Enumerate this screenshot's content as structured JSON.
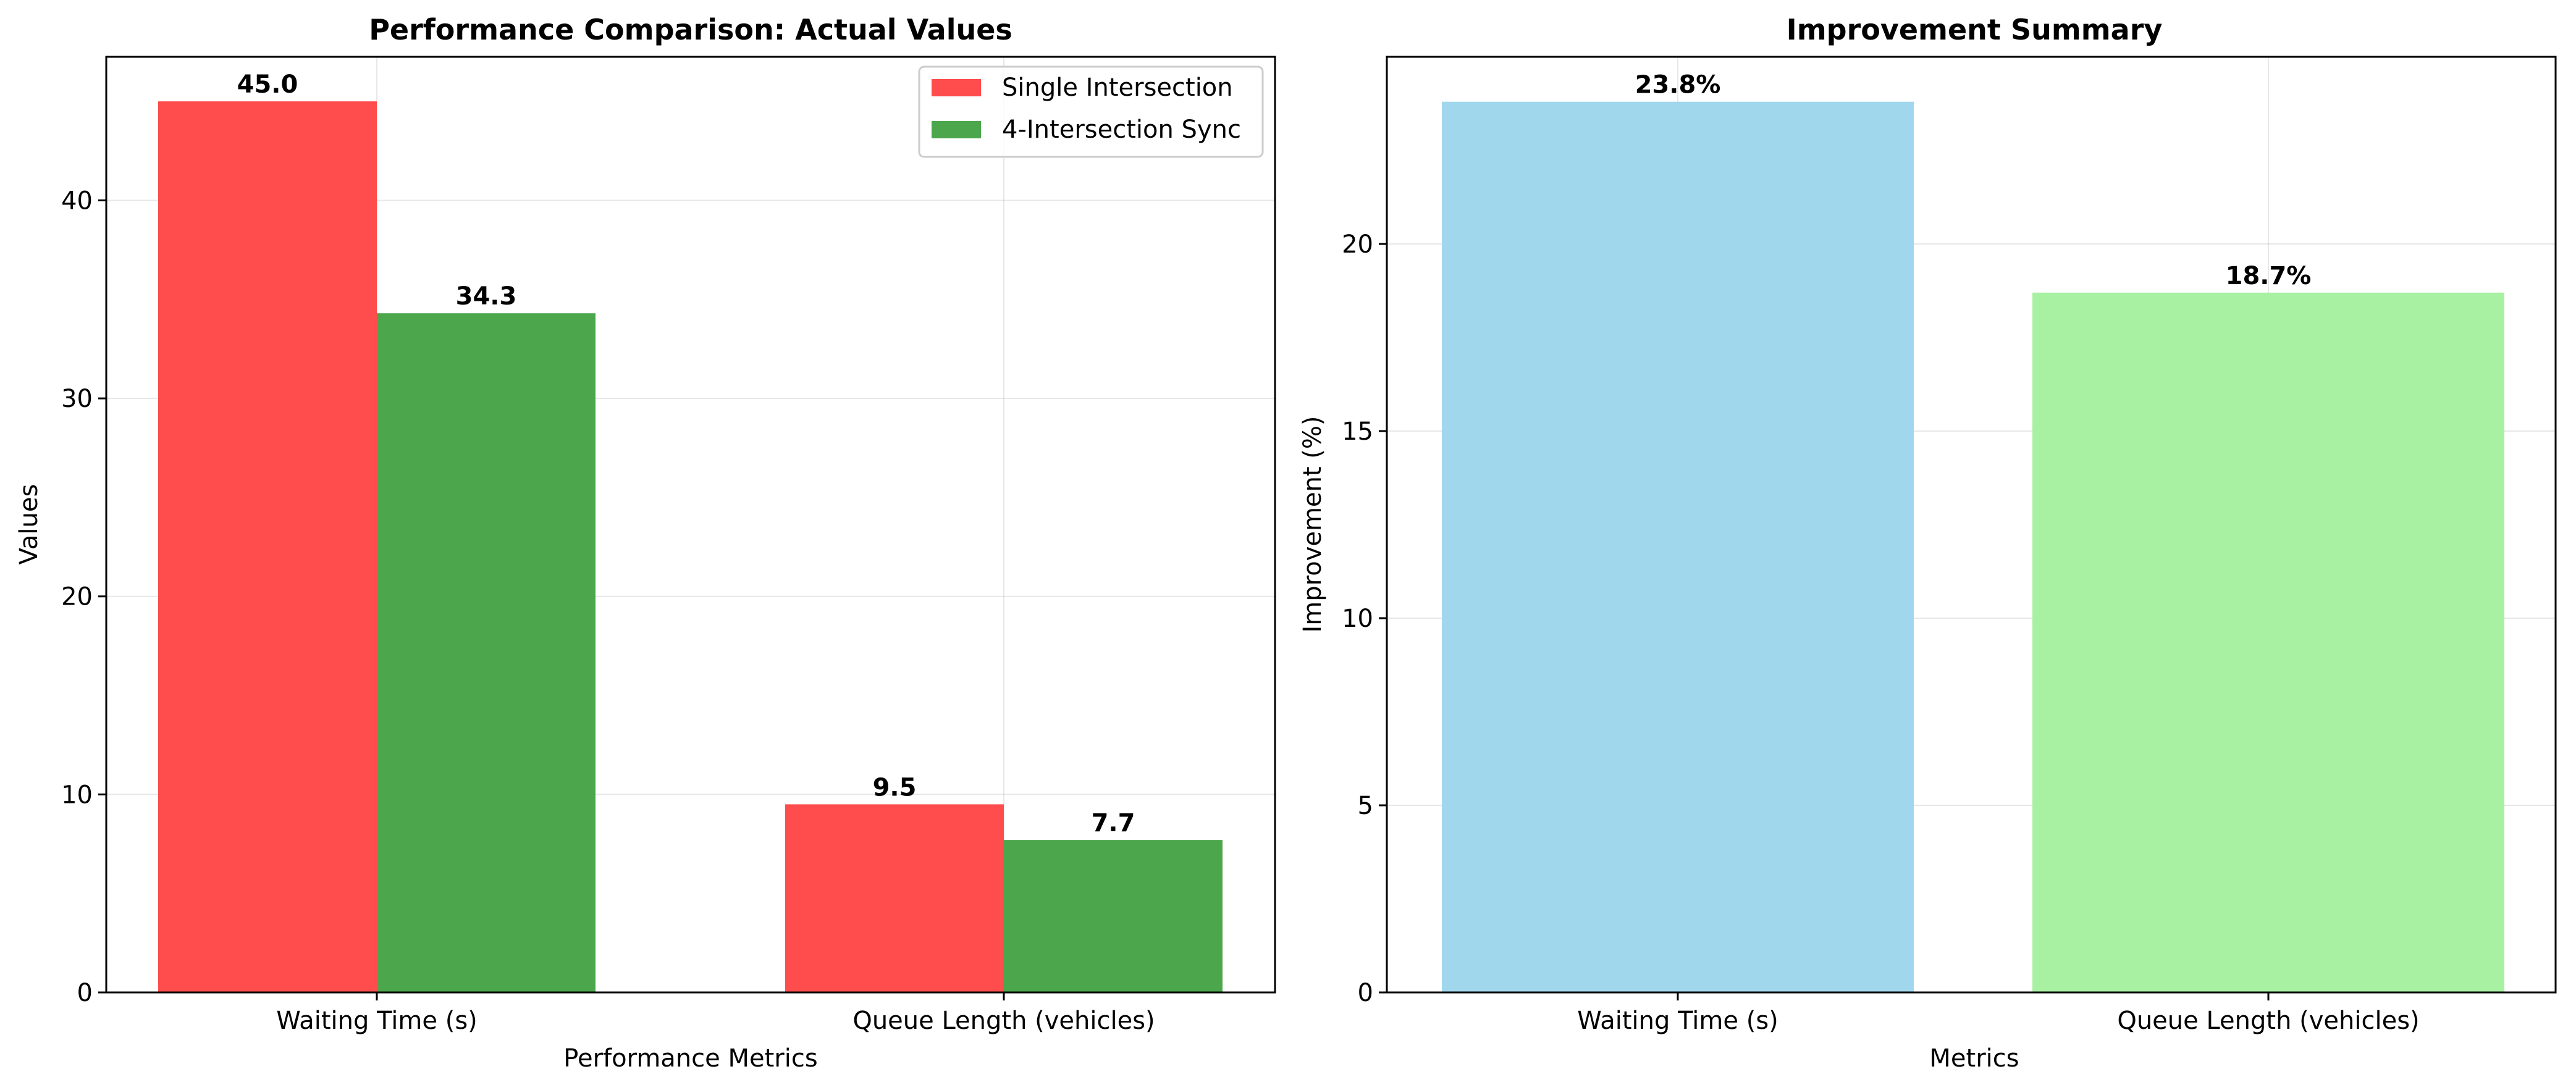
{
  "chart_data": [
    {
      "type": "bar",
      "title": "Performance Comparison: Actual Values",
      "xlabel": "Performance Metrics",
      "ylabel": "Values",
      "categories": [
        "Waiting Time (s)",
        "Queue Length (vehicles)"
      ],
      "series": [
        {
          "name": "Single Intersection",
          "values": [
            45.0,
            9.5
          ],
          "labels": [
            "45.0",
            "9.5"
          ],
          "color": "#ff4c4c"
        },
        {
          "name": "4-Intersection Sync",
          "values": [
            34.3,
            7.7
          ],
          "labels": [
            "34.3",
            "7.7"
          ],
          "color": "#4ca64c"
        }
      ],
      "ylim": [
        0,
        47.25
      ],
      "yticks": [
        0,
        10,
        20,
        30,
        40
      ],
      "ytick_labels": [
        "0",
        "10",
        "20",
        "30",
        "40"
      ],
      "grid": true,
      "legend": "top-right"
    },
    {
      "type": "bar",
      "title": "Improvement Summary",
      "xlabel": "Metrics",
      "ylabel": "Improvement (%)",
      "categories": [
        "Waiting Time (s)",
        "Queue Length (vehicles)"
      ],
      "values": [
        23.8,
        18.7
      ],
      "labels": [
        "23.8%",
        "18.7%"
      ],
      "colors": [
        "#a1d7ed",
        "#a8f1a3"
      ],
      "ylim": [
        0,
        25.0
      ],
      "yticks": [
        0,
        5,
        10,
        15,
        20
      ],
      "ytick_labels": [
        "0",
        "5",
        "10",
        "15",
        "20"
      ],
      "grid": true
    }
  ]
}
